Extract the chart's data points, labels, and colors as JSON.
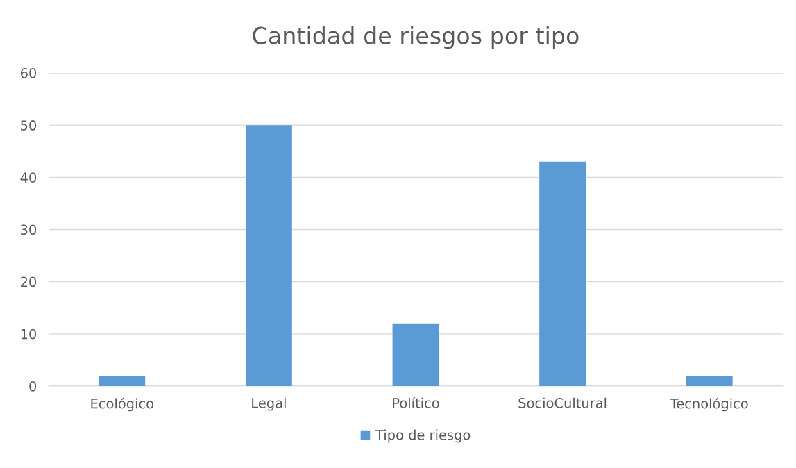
{
  "chart_data": {
    "type": "bar",
    "title": "Cantidad de riesgos por tipo",
    "categories": [
      "Ecológico",
      "Legal",
      "Político",
      "SocioCultural",
      "Tecnológico"
    ],
    "series": [
      {
        "name": "Tipo de riesgo",
        "color": "#5b9bd5",
        "values": [
          2,
          50,
          12,
          43,
          2
        ]
      }
    ],
    "ylim": [
      0,
      60
    ],
    "yticks": [
      0,
      10,
      20,
      30,
      40,
      50,
      60
    ],
    "grid": "y",
    "legend": "bottom"
  }
}
